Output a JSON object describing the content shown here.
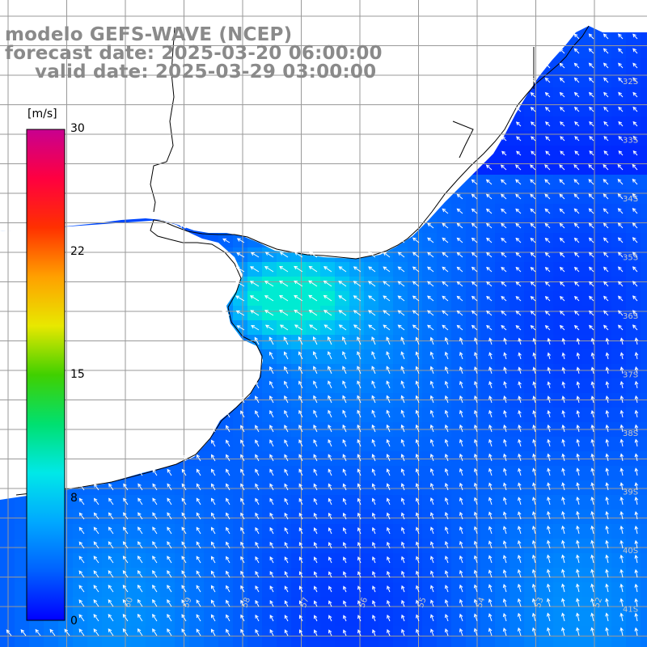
{
  "header": {
    "model_line": "modelo GEFS-WAVE (NCEP)",
    "forecast_line": "forecast date: 2025-03-20 06:00:00",
    "valid_line": "valid date: 2025-03-29 03:00:00"
  },
  "colorbar": {
    "unit": "[m/s]",
    "ticks": [
      "30",
      "22",
      "15",
      "8",
      "0"
    ],
    "tick_values": [
      30,
      22,
      15,
      8,
      0
    ],
    "range": [
      0,
      30
    ],
    "colors": [
      "#0000ff",
      "#0060ff",
      "#00a8ff",
      "#00e8e8",
      "#00e070",
      "#40d000",
      "#e8e800",
      "#ffa000",
      "#ff3000",
      "#ff0040",
      "#c80090"
    ]
  },
  "map": {
    "land_color": "#ffffff",
    "coastline_color": "#000000",
    "grid_color": "#999999",
    "vector_color": "#ffffff",
    "right_edge_labels": [
      "32S",
      "33S",
      "34S",
      "35S",
      "36S",
      "37S",
      "38S",
      "39S",
      "40S",
      "41S"
    ],
    "bottom_edge_labels": [
      "60",
      "59",
      "58",
      "57",
      "56",
      "55",
      "54",
      "53",
      "52"
    ]
  }
}
